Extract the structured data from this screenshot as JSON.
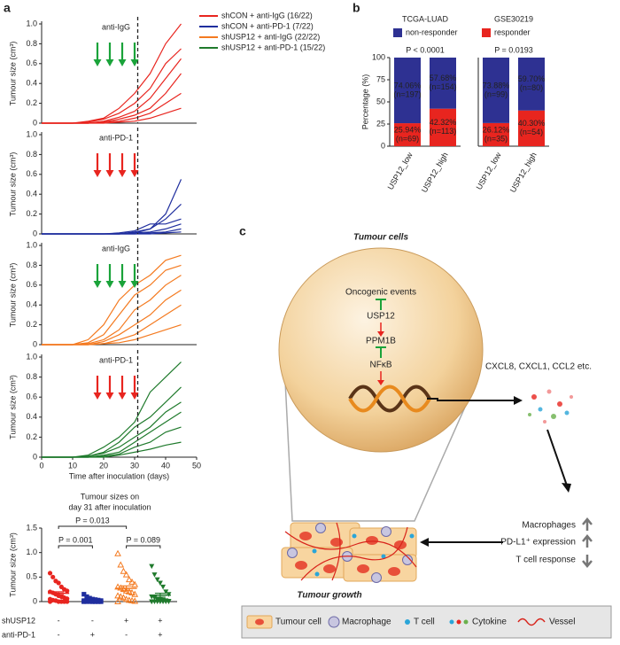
{
  "panel_labels": [
    "a",
    "b",
    "c"
  ],
  "chart_data": [
    {
      "type": "line",
      "annotation": "anti-IgG",
      "ylabel": "Tumour size (cm³)",
      "color": "#e8251f",
      "arrow_color": "#1aa33a",
      "arrows": [
        18,
        22,
        26,
        30
      ],
      "vline": 31,
      "xlim": [
        0,
        50
      ],
      "ylim": [
        0,
        1
      ],
      "yticks": [
        0,
        0.2,
        0.4,
        0.6,
        0.8,
        {
          "value": 1,
          "label": "1.0"
        }
      ],
      "legend": [
        {
          "label": "shCON + anti-IgG (16/22)",
          "color": "#e8251f"
        },
        {
          "label": "shCON + anti-PD-1 (7/22)",
          "color": "#1f2e9e"
        },
        {
          "label": "shUSP12 + anti-IgG (22/22)",
          "color": "#f47a20"
        },
        {
          "label": "shUSP12 + anti-PD-1 (15/22)",
          "color": "#1f7a2c"
        }
      ],
      "x": [
        0,
        5,
        10,
        15,
        20,
        25,
        30,
        35,
        40,
        45
      ],
      "series": [
        {
          "values": [
            0,
            0,
            0,
            0.02,
            0.05,
            0.15,
            0.3,
            0.5,
            0.8,
            1.0
          ]
        },
        {
          "values": [
            0,
            0,
            0,
            0.01,
            0.04,
            0.1,
            0.2,
            0.35,
            0.6,
            0.75
          ]
        },
        {
          "values": [
            0,
            0,
            0,
            0,
            0.02,
            0.06,
            0.12,
            0.25,
            0.45,
            0.65
          ]
        },
        {
          "values": [
            0,
            0,
            0,
            0,
            0.01,
            0.04,
            0.08,
            0.15,
            0.3,
            0.5
          ]
        },
        {
          "values": [
            0,
            0,
            0,
            0,
            0.01,
            0.02,
            0.05,
            0.1,
            0.2,
            0.3
          ]
        },
        {
          "values": [
            0,
            0,
            0,
            0,
            0,
            0.01,
            0.02,
            0.05,
            0.1,
            0.15
          ]
        }
      ]
    },
    {
      "type": "line",
      "annotation": "anti-PD-1",
      "ylabel": "Tumour size (cm³)",
      "color": "#1f2e9e",
      "arrow_color": "#e8251f",
      "arrows": [
        18,
        22,
        26,
        30
      ],
      "vline": 31,
      "xlim": [
        0,
        50
      ],
      "ylim": [
        0,
        1
      ],
      "yticks": [
        0,
        0.2,
        0.4,
        0.6,
        0.8,
        {
          "value": 1,
          "label": "1.0"
        }
      ],
      "x": [
        0,
        5,
        10,
        15,
        20,
        25,
        30,
        35,
        40,
        45
      ],
      "series": [
        {
          "values": [
            0,
            0,
            0,
            0,
            0,
            0,
            0.02,
            0.05,
            0.2,
            0.55
          ]
        },
        {
          "values": [
            0,
            0,
            0,
            0,
            0,
            0,
            0.01,
            0.05,
            0.15,
            0.3
          ]
        },
        {
          "values": [
            0,
            0,
            0,
            0,
            0,
            0.01,
            0.03,
            0.1,
            0.1,
            0.15
          ]
        },
        {
          "values": [
            0,
            0,
            0,
            0,
            0,
            0,
            0.01,
            0.02,
            0.05,
            0.1
          ]
        },
        {
          "values": [
            0,
            0,
            0,
            0,
            0,
            0,
            0,
            0.01,
            0.02,
            0.05
          ]
        },
        {
          "values": [
            0,
            0,
            0,
            0,
            0,
            0,
            0,
            0,
            0.01,
            0.02
          ]
        }
      ]
    },
    {
      "type": "line",
      "annotation": "anti-IgG",
      "ylabel": "Tumour size (cm³)",
      "color": "#f47a20",
      "arrow_color": "#1aa33a",
      "arrows": [
        18,
        22,
        26,
        30
      ],
      "vline": 31,
      "xlim": [
        0,
        50
      ],
      "ylim": [
        0,
        1
      ],
      "yticks": [
        0,
        0.2,
        0.4,
        0.6,
        0.8,
        {
          "value": 1,
          "label": "1.0"
        }
      ],
      "x": [
        0,
        5,
        10,
        15,
        20,
        25,
        30,
        35,
        40,
        45
      ],
      "series": [
        {
          "values": [
            0,
            0,
            0,
            0.05,
            0.2,
            0.45,
            0.6,
            0.7,
            0.85,
            0.9
          ]
        },
        {
          "values": [
            0,
            0,
            0,
            0.02,
            0.1,
            0.3,
            0.5,
            0.6,
            0.75,
            0.8
          ]
        },
        {
          "values": [
            0,
            0,
            0,
            0.01,
            0.05,
            0.15,
            0.35,
            0.45,
            0.6,
            0.7
          ]
        },
        {
          "values": [
            0,
            0,
            0,
            0,
            0.03,
            0.1,
            0.2,
            0.3,
            0.45,
            0.55
          ]
        },
        {
          "values": [
            0,
            0,
            0,
            0,
            0.01,
            0.05,
            0.1,
            0.2,
            0.3,
            0.4
          ]
        },
        {
          "values": [
            0,
            0,
            0,
            0,
            0.01,
            0.02,
            0.05,
            0.1,
            0.15,
            0.2
          ]
        }
      ]
    },
    {
      "type": "line",
      "annotation": "anti-PD-1",
      "ylabel": "Tumour size (cm³)",
      "xlabel": "Time after inoculation (days)",
      "color": "#1f7a2c",
      "arrow_color": "#e8251f",
      "arrows": [
        18,
        22,
        26,
        30
      ],
      "vline": 31,
      "xlim": [
        0,
        50
      ],
      "xticks": [
        0,
        10,
        20,
        30,
        40,
        50
      ],
      "ylim": [
        0,
        1
      ],
      "yticks": [
        0,
        0.2,
        0.4,
        0.6,
        0.8,
        {
          "value": 1,
          "label": "1.0"
        }
      ],
      "x": [
        0,
        5,
        10,
        15,
        20,
        25,
        30,
        35,
        40,
        45
      ],
      "series": [
        {
          "values": [
            0,
            0,
            0,
            0.02,
            0.1,
            0.2,
            0.35,
            0.65,
            0.8,
            0.95
          ]
        },
        {
          "values": [
            0,
            0,
            0,
            0.01,
            0.05,
            0.15,
            0.3,
            0.4,
            0.55,
            0.7
          ]
        },
        {
          "values": [
            0,
            0,
            0,
            0.01,
            0.04,
            0.1,
            0.2,
            0.3,
            0.45,
            0.55
          ]
        },
        {
          "values": [
            0,
            0,
            0,
            0,
            0.02,
            0.05,
            0.15,
            0.25,
            0.35,
            0.45
          ]
        },
        {
          "values": [
            0,
            0,
            0,
            0,
            0.01,
            0.03,
            0.1,
            0.15,
            0.25,
            0.3
          ]
        },
        {
          "values": [
            0,
            0,
            0,
            0,
            0,
            0.02,
            0.05,
            0.08,
            0.12,
            0.15
          ]
        }
      ]
    },
    {
      "type": "dot",
      "title": [
        "Tumour sizes on",
        "day 31 after inoculation"
      ],
      "ylabel": "Tumour size (cm³)",
      "ylim": [
        0,
        1.5
      ],
      "yticks": [
        0,
        0.5,
        {
          "value": 1,
          "label": "1.0"
        },
        1.5
      ],
      "series": [
        {
          "color": "#e8251f",
          "marker": "circle",
          "mean": 0.17,
          "sem": 0.03,
          "values": [
            0.58,
            0.5,
            0.42,
            0.38,
            0.3,
            0.25,
            0.22,
            0.2,
            0.18,
            0.15,
            0.12,
            0.1,
            0.08,
            0.06,
            0.05,
            0.03,
            0.02,
            0,
            0,
            0,
            0,
            0
          ]
        },
        {
          "color": "#1f2e9e",
          "marker": "square",
          "mean": 0.03,
          "sem": 0.01,
          "values": [
            0.15,
            0.1,
            0.07,
            0.05,
            0.04,
            0.03,
            0.02,
            0.02,
            0.01,
            0.01,
            0,
            0,
            0,
            0,
            0,
            0,
            0,
            0,
            0,
            0,
            0,
            0
          ]
        },
        {
          "color": "#f47a20",
          "marker": "triangle-up",
          "mean": 0.27,
          "sem": 0.05,
          "values": [
            0.98,
            0.75,
            0.62,
            0.55,
            0.45,
            0.4,
            0.35,
            0.3,
            0.28,
            0.25,
            0.22,
            0.2,
            0.18,
            0.15,
            0.12,
            0.1,
            0.08,
            0.05,
            0.03,
            0.02,
            0.01,
            0
          ]
        },
        {
          "color": "#1f7a2c",
          "marker": "triangle-down",
          "mean": 0.13,
          "sem": 0.04,
          "values": [
            0.72,
            0.55,
            0.45,
            0.38,
            0.3,
            0.2,
            0.15,
            0.1,
            0.08,
            0.05,
            0.04,
            0.03,
            0.02,
            0.01,
            0,
            0,
            0,
            0,
            0,
            0,
            0,
            0
          ]
        }
      ],
      "comparisons": [
        {
          "label": "P = 0.001",
          "groups": [
            0,
            1
          ]
        },
        {
          "label": "P = 0.013",
          "groups": [
            0,
            2
          ]
        },
        {
          "label": "P = 0.089",
          "groups": [
            2,
            3
          ]
        }
      ],
      "rows": [
        {
          "label": "shUSP12",
          "values": [
            "-",
            "-",
            "+",
            "+"
          ]
        },
        {
          "label": "anti-PD-1",
          "values": [
            "-",
            "+",
            "-",
            "+"
          ]
        }
      ]
    },
    {
      "type": "stacked_bar",
      "title": "TCGA-LUAD",
      "subtitle": "P < 0.0001",
      "ylabel": "Percentage (%)",
      "ylim": [
        0,
        100
      ],
      "yticks": [
        0,
        25,
        50,
        75,
        100
      ],
      "categories": [
        "USP12_low",
        "USP12_high"
      ],
      "series": [
        {
          "color": "#e8251f",
          "values": [
            25.94,
            42.32
          ],
          "value_labels": [
            "25.94%",
            "42.32%"
          ],
          "n_labels": [
            "(n=69)",
            "(n=113)"
          ]
        },
        {
          "color": "#2e3192",
          "values": [
            74.06,
            57.68
          ],
          "value_labels": [
            "74.06%",
            "57.68%"
          ],
          "n_labels": [
            "(n=197)",
            "(n=154)"
          ]
        }
      ]
    },
    {
      "type": "stacked_bar",
      "title": "GSE30219",
      "subtitle": "P = 0.0193",
      "ylim": [
        0,
        100
      ],
      "categories": [
        "USP12_low",
        "USP12_high"
      ],
      "series": [
        {
          "color": "#e8251f",
          "values": [
            26.12,
            40.3
          ],
          "value_labels": [
            "26.12%",
            "40.30%"
          ],
          "n_labels": [
            "(n=35)",
            "(n=54)"
          ]
        },
        {
          "color": "#2e3192",
          "values": [
            73.88,
            59.7
          ],
          "value_labels": [
            "73.88%",
            "59.70%"
          ],
          "n_labels": [
            "(n=99)",
            "(n=80)"
          ]
        }
      ]
    }
  ],
  "legend_b": [
    {
      "label": "non-responder",
      "color": "#2e3192"
    },
    {
      "label": "responder",
      "color": "#e8251f"
    }
  ],
  "diagram": {
    "title": "Tumour cells",
    "pathway": [
      "Oncogenic events",
      "USP12",
      "PPM1B",
      "NFκB"
    ],
    "secreted": "CXCL8, CXCL1, CCL2 etc.",
    "effects": [
      "Macrophages",
      "PD-L1⁺ expression",
      "T cell response"
    ],
    "outcome": "Tumour growth",
    "legend": [
      "Tumour cell",
      "Macrophage",
      "T cell",
      "Cytokine",
      "Vessel"
    ]
  }
}
